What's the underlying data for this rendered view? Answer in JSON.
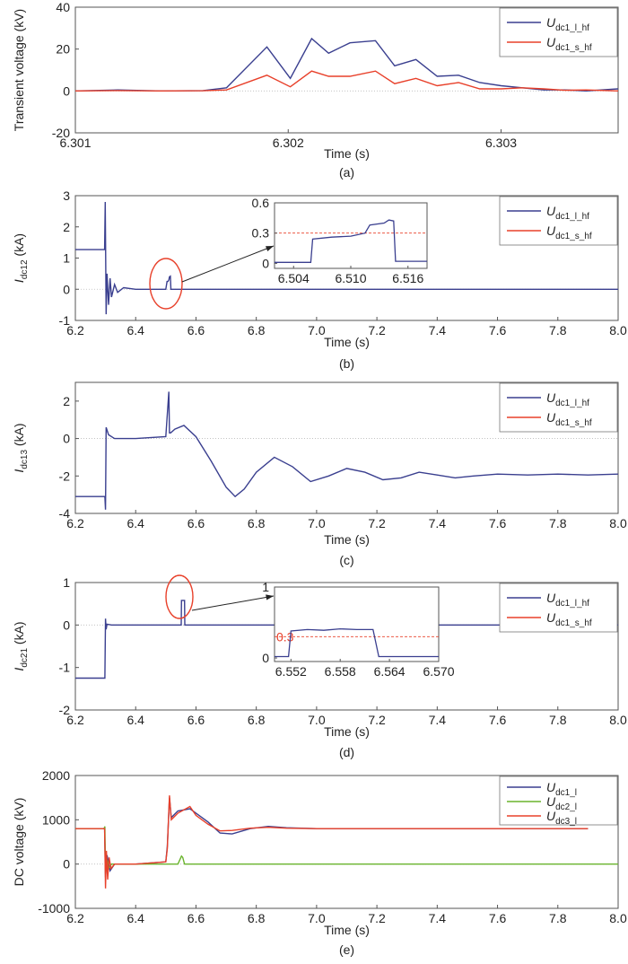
{
  "figure": {
    "panels": [
      {
        "id": "a",
        "caption": "(a)",
        "ylabel_html": "Transient voltage (kV)",
        "xlabel": "Time (s)"
      },
      {
        "id": "b",
        "caption": "(b)",
        "ylabel_main": "I",
        "ylabel_sub": "dc12",
        "ylabel_unit": " (kA)",
        "xlabel": "Time (s)"
      },
      {
        "id": "c",
        "caption": "(c)",
        "ylabel_main": "I",
        "ylabel_sub": "dc13",
        "ylabel_unit": " (kA)",
        "xlabel": "Time (s)"
      },
      {
        "id": "d",
        "caption": "(d)",
        "ylabel_main": "I",
        "ylabel_sub": "dc21",
        "ylabel_unit": " (kA)",
        "xlabel": "Time (s)"
      },
      {
        "id": "e",
        "caption": "(e)",
        "ylabel_html": "DC voltage (kV)",
        "xlabel": "Time (s)"
      }
    ]
  },
  "colors": {
    "blue": "#3a3f8f",
    "red": "#e8402a",
    "green": "#6ab42d",
    "refline": "#e8402a"
  },
  "chart_data": [
    {
      "type": "line",
      "panel": "a",
      "xlabel": "Time (s)",
      "ylabel": "Transient voltage (kV)",
      "xlim": [
        6.301,
        6.30355
      ],
      "ylim": [
        -20,
        40
      ],
      "xticks": [
        6.301,
        6.302,
        6.303
      ],
      "xticklabels": [
        "6.301",
        "6.302",
        "6.303"
      ],
      "yticks": [
        -20,
        0,
        20,
        40
      ],
      "legend": "top-right",
      "series": [
        {
          "name": "U",
          "sub": "dc1_l_hf",
          "color": "#3a3f8f",
          "x": [
            6.301,
            6.3012,
            6.3014,
            6.3016,
            6.30171,
            6.3019,
            6.30201,
            6.30211,
            6.30219,
            6.30229,
            6.30241,
            6.3025,
            6.3026,
            6.3027,
            6.3028,
            6.3029,
            6.303,
            6.3031,
            6.3032,
            6.3033,
            6.3034,
            6.30355
          ],
          "y": [
            0,
            0.5,
            0,
            0.2,
            1.5,
            21,
            6,
            25,
            18,
            23,
            24,
            12,
            15,
            7,
            7.5,
            4,
            2.5,
            1.5,
            0.5,
            0.5,
            0,
            1
          ]
        },
        {
          "name": "U",
          "sub": "dc1_s_hf",
          "color": "#e8402a",
          "x": [
            6.301,
            6.3012,
            6.3014,
            6.3016,
            6.30171,
            6.3019,
            6.30201,
            6.30211,
            6.30219,
            6.30229,
            6.30241,
            6.3025,
            6.3026,
            6.3027,
            6.3028,
            6.3029,
            6.303,
            6.3031,
            6.3032,
            6.3033,
            6.3034,
            6.30355
          ],
          "y": [
            0,
            0.2,
            0,
            0.1,
            0.5,
            7.5,
            2,
            9.5,
            7,
            7,
            9.5,
            3.5,
            6,
            2.5,
            4,
            1,
            1,
            1.5,
            1,
            0.3,
            0.5,
            0
          ]
        }
      ]
    },
    {
      "type": "line",
      "panel": "b",
      "xlabel": "Time (s)",
      "ylabel": "Idc12 (kA)",
      "xlim": [
        6.2,
        8.0
      ],
      "ylim": [
        -1,
        3
      ],
      "xticks": [
        6.2,
        6.4,
        6.6,
        6.8,
        7.0,
        7.2,
        7.4,
        7.6,
        7.8,
        8.0
      ],
      "xticklabels": [
        "6.2",
        "6.4",
        "6.6",
        "6.8",
        "7.0",
        "7.2",
        "7.4",
        "7.6",
        "7.8",
        "8.0"
      ],
      "yticks": [
        -1,
        0,
        1,
        2,
        3
      ],
      "legend": "top-right",
      "series": [
        {
          "name": "U",
          "sub": "dc1_l_hf",
          "color": "#3a3f8f",
          "x": [
            6.2,
            6.297,
            6.299,
            6.302,
            6.305,
            6.31,
            6.315,
            6.32,
            6.33,
            6.34,
            6.36,
            6.4,
            6.5,
            6.504,
            6.507,
            6.51,
            6.512,
            6.515,
            6.517,
            6.6,
            8.0
          ],
          "y": [
            1.27,
            1.27,
            2.8,
            -0.8,
            0.5,
            -0.5,
            0.35,
            -0.25,
            0.15,
            -0.1,
            0.05,
            0,
            0,
            0.25,
            0.25,
            0.3,
            0.4,
            0.42,
            0,
            0,
            0
          ]
        },
        {
          "name": "U",
          "sub": "dc1_s_hf",
          "color": "#e8402a",
          "x": [],
          "y": []
        }
      ],
      "inset": {
        "xlim": [
          6.502,
          6.518
        ],
        "ylim": [
          -0.05,
          0.6
        ],
        "xticks": [
          6.504,
          6.51,
          6.516
        ],
        "xticklabels": [
          "6.504",
          "6.510",
          "6.516"
        ],
        "yticks": [
          0,
          0.3,
          0.6
        ],
        "yticklabels": [
          "0",
          "0.3",
          "0.6"
        ],
        "refline": 0.3,
        "x": [
          6.502,
          6.5058,
          6.506,
          6.508,
          6.51,
          6.5115,
          6.512,
          6.5135,
          6.514,
          6.5145,
          6.5147,
          6.518
        ],
        "y": [
          0.01,
          0.01,
          0.24,
          0.26,
          0.27,
          0.3,
          0.38,
          0.4,
          0.43,
          0.42,
          0.02,
          0.02
        ]
      }
    },
    {
      "type": "line",
      "panel": "c",
      "xlabel": "Time (s)",
      "ylabel": "Idc13 (kA)",
      "xlim": [
        6.2,
        8.0
      ],
      "ylim": [
        -4,
        3
      ],
      "xticks": [
        6.2,
        6.4,
        6.6,
        6.8,
        7.0,
        7.2,
        7.4,
        7.6,
        7.8,
        8.0
      ],
      "xticklabels": [
        "6.2",
        "6.4",
        "6.6",
        "6.8",
        "7.0",
        "7.2",
        "7.4",
        "7.6",
        "7.8",
        "8.0"
      ],
      "yticks": [
        -4,
        -2,
        0,
        2
      ],
      "legend": "top-right",
      "series": [
        {
          "name": "U",
          "sub": "dc1_l_hf",
          "color": "#3a3f8f",
          "x": [
            6.2,
            6.298,
            6.3,
            6.302,
            6.31,
            6.33,
            6.4,
            6.5,
            6.51,
            6.512,
            6.516,
            6.53,
            6.56,
            6.6,
            6.65,
            6.7,
            6.73,
            6.76,
            6.8,
            6.86,
            6.92,
            6.98,
            7.04,
            7.1,
            7.16,
            7.22,
            7.28,
            7.34,
            7.4,
            7.46,
            7.52,
            7.6,
            7.7,
            7.8,
            7.9,
            8.0
          ],
          "y": [
            -3.1,
            -3.1,
            -3.8,
            0.6,
            0.2,
            0,
            0,
            0.1,
            2.5,
            0.3,
            0.3,
            0.5,
            0.7,
            0.1,
            -1.2,
            -2.6,
            -3.1,
            -2.7,
            -1.8,
            -1.0,
            -1.5,
            -2.3,
            -2.0,
            -1.6,
            -1.8,
            -2.2,
            -2.1,
            -1.8,
            -1.95,
            -2.1,
            -2.0,
            -1.9,
            -1.95,
            -1.9,
            -1.95,
            -1.9
          ]
        },
        {
          "name": "U",
          "sub": "dc1_s_hf",
          "color": "#e8402a",
          "x": [],
          "y": []
        }
      ]
    },
    {
      "type": "line",
      "panel": "d",
      "xlabel": "Time (s)",
      "ylabel": "Idc21 (kA)",
      "xlim": [
        6.2,
        8.0
      ],
      "ylim": [
        -2,
        1
      ],
      "xticks": [
        6.2,
        6.4,
        6.6,
        6.8,
        7.0,
        7.2,
        7.4,
        7.6,
        7.8,
        8.0
      ],
      "xticklabels": [
        "6.2",
        "6.4",
        "6.6",
        "6.8",
        "7.0",
        "7.2",
        "7.4",
        "7.6",
        "7.8",
        "8.0"
      ],
      "yticks": [
        -2,
        -1,
        0,
        1
      ],
      "legend": "top-right",
      "series": [
        {
          "name": "U",
          "sub": "dc1_l_hf",
          "color": "#3a3f8f",
          "x": [
            6.2,
            6.298,
            6.3,
            6.302,
            6.305,
            6.32,
            6.551,
            6.552,
            6.562,
            6.563,
            8.0
          ],
          "y": [
            -1.25,
            -1.25,
            0.15,
            -0.1,
            0.02,
            0,
            0,
            0.58,
            0.58,
            0,
            0
          ]
        },
        {
          "name": "U",
          "sub": "dc1_s_hf",
          "color": "#e8402a",
          "x": [],
          "y": []
        }
      ],
      "inset": {
        "xlim": [
          6.55,
          6.57
        ],
        "ylim": [
          -0.05,
          1.0
        ],
        "xticks": [
          6.552,
          6.558,
          6.564,
          6.57
        ],
        "xticklabels": [
          "6.552",
          "6.558",
          "6.564",
          "6.570"
        ],
        "yticks": [
          0,
          1
        ],
        "yticklabels": [
          "0",
          "1"
        ],
        "refline": 0.3,
        "refline_label": "0.3",
        "x": [
          6.55,
          6.5517,
          6.552,
          6.554,
          6.556,
          6.558,
          6.56,
          6.562,
          6.5627,
          6.57
        ],
        "y": [
          0.02,
          0.02,
          0.38,
          0.4,
          0.39,
          0.41,
          0.4,
          0.4,
          0.02,
          0.02
        ]
      }
    },
    {
      "type": "line",
      "panel": "e",
      "xlabel": "Time (s)",
      "ylabel": "DC voltage (kV)",
      "xlim": [
        6.2,
        8.0
      ],
      "ylim": [
        -1000,
        2000
      ],
      "xticks": [
        6.2,
        6.4,
        6.6,
        6.8,
        7.0,
        7.2,
        7.4,
        7.6,
        7.8,
        8.0
      ],
      "xticklabels": [
        "6.2",
        "6.4",
        "6.6",
        "6.8",
        "7.0",
        "7.2",
        "7.4",
        "7.6",
        "7.8",
        "8.0"
      ],
      "yticks": [
        -1000,
        0,
        1000,
        2000
      ],
      "legend": "top-right",
      "series": [
        {
          "name": "U",
          "sub": "dc1_l",
          "color": "#3a3f8f",
          "x": [
            6.2,
            6.297,
            6.3,
            6.305,
            6.315,
            6.33,
            6.36,
            6.4,
            6.5,
            6.505,
            6.512,
            6.518,
            6.54,
            6.58,
            6.6,
            6.64,
            6.68,
            6.72,
            6.78,
            6.84,
            6.9,
            7.0,
            7.4,
            7.9
          ],
          "y": [
            800,
            800,
            -300,
            200,
            -150,
            0,
            0,
            0,
            50,
            400,
            1500,
            1050,
            1200,
            1250,
            1150,
            950,
            700,
            680,
            800,
            850,
            820,
            800,
            800,
            800
          ]
        },
        {
          "name": "U",
          "sub": "dc2_l",
          "color": "#6ab42d",
          "x": [
            6.2,
            6.295,
            6.298,
            6.3,
            6.305,
            6.31,
            6.32,
            6.4,
            6.5,
            6.54,
            6.552,
            6.556,
            6.562,
            6.57,
            8.0
          ],
          "y": [
            800,
            800,
            850,
            -200,
            100,
            -100,
            0,
            0,
            0,
            0,
            180,
            150,
            0,
            0,
            0
          ]
        },
        {
          "name": "U",
          "sub": "dc3_l",
          "color": "#e8402a",
          "x": [
            6.2,
            6.297,
            6.3,
            6.303,
            6.307,
            6.312,
            6.318,
            6.33,
            6.36,
            6.4,
            6.5,
            6.505,
            6.512,
            6.518,
            6.54,
            6.58,
            6.6,
            6.64,
            6.68,
            6.72,
            6.78,
            6.84,
            6.9,
            7.0,
            7.4,
            7.9
          ],
          "y": [
            800,
            800,
            -550,
            300,
            -350,
            150,
            -100,
            0,
            0,
            0,
            50,
            350,
            1550,
            1000,
            1150,
            1300,
            1100,
            900,
            750,
            760,
            810,
            830,
            810,
            800,
            800,
            800
          ]
        }
      ]
    }
  ]
}
